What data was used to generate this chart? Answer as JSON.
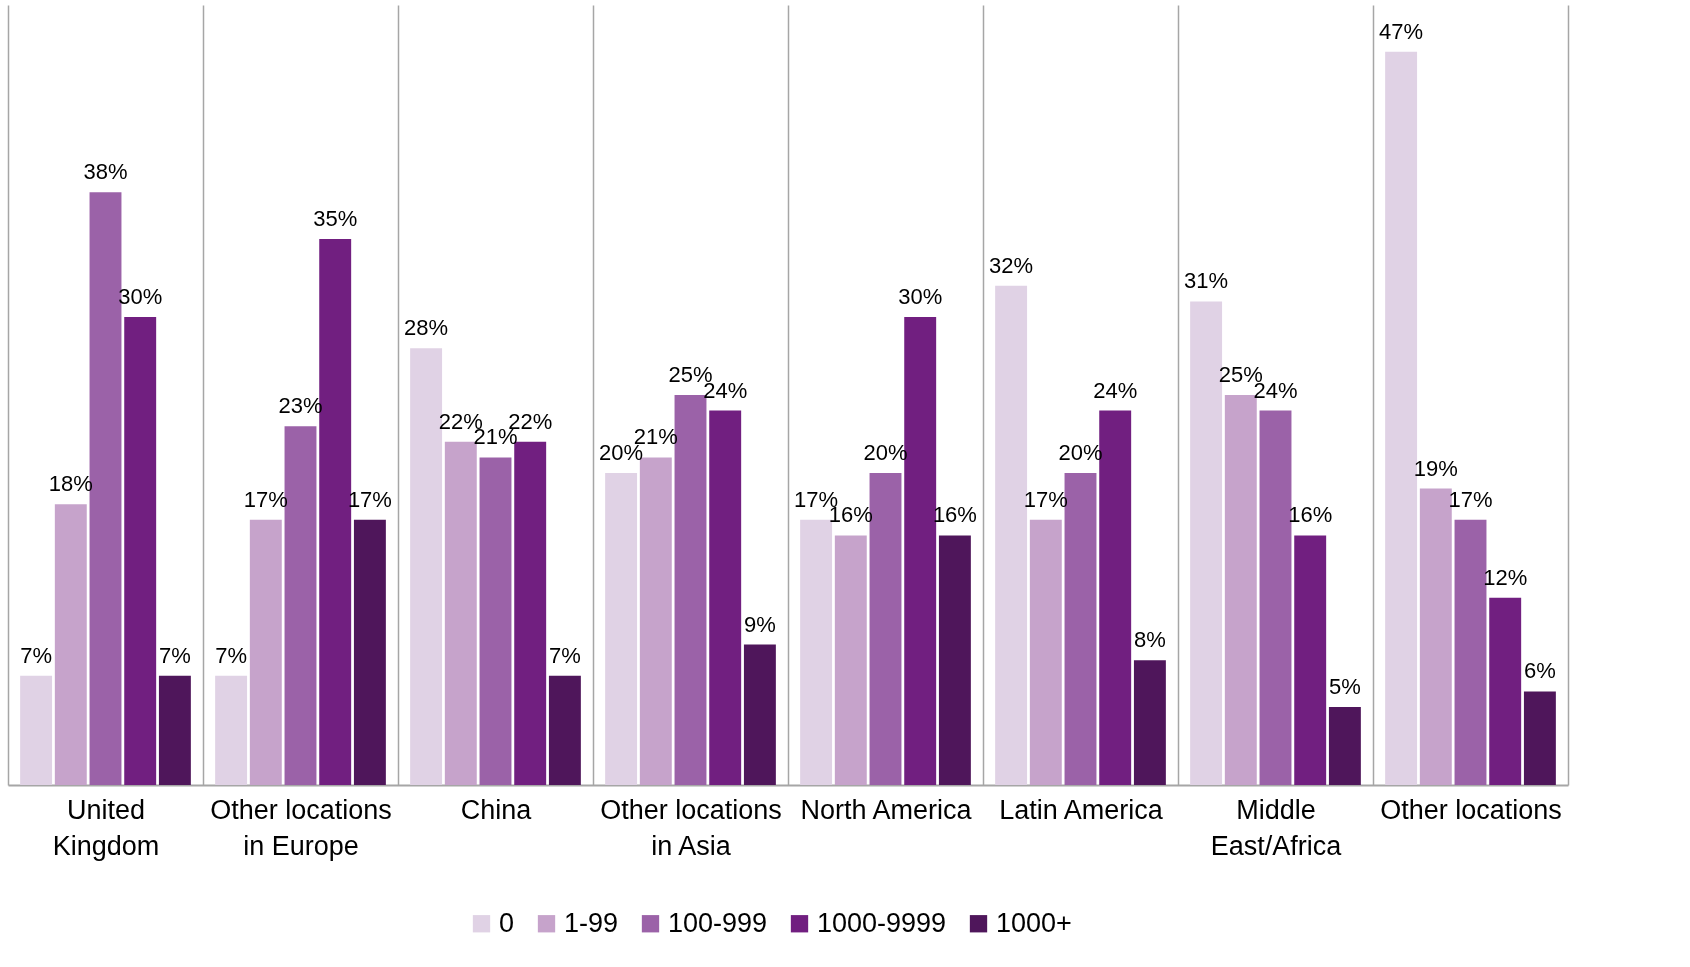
{
  "chart_data": {
    "type": "bar",
    "categories": [
      "United Kingdom",
      "Other locations in Europe",
      "China",
      "Other locations in Asia",
      "North America",
      "Latin America",
      "Middle East/Africa",
      "Other locations"
    ],
    "series": [
      {
        "name": "0",
        "color": "#e0d2e5",
        "values": [
          7,
          7,
          28,
          20,
          17,
          32,
          31,
          47
        ],
        "value_labels": [
          "7%",
          "7%",
          "28%",
          "20%",
          "17%",
          "32%",
          "31%",
          "47%"
        ]
      },
      {
        "name": "1-99",
        "color": "#c6a3cb",
        "values": [
          18,
          17,
          22,
          21,
          16,
          17,
          25,
          19
        ],
        "value_labels": [
          "18%",
          "17%",
          "22%",
          "21%",
          "16%",
          "17%",
          "25%",
          "19%"
        ]
      },
      {
        "name": "100-999",
        "color": "#9b62a8",
        "values": [
          38,
          23,
          21,
          25,
          20,
          20,
          24,
          17
        ],
        "value_labels": [
          "38%",
          "23%",
          "21%",
          "25%",
          "20%",
          "20%",
          "24%",
          "17%"
        ]
      },
      {
        "name": "1000-9999",
        "color": "#711f80",
        "values": [
          30,
          35,
          22,
          24,
          30,
          24,
          16,
          12
        ],
        "value_labels": [
          "30%",
          "35%",
          "22%",
          "24%",
          "30%",
          "24%",
          "16%",
          "12%"
        ]
      },
      {
        "name": "1000+",
        "color": "#4f165b",
        "values": [
          7,
          17,
          7,
          9,
          16,
          8,
          5,
          6
        ],
        "value_labels": [
          "7%",
          "17%",
          "7%",
          "9%",
          "16%",
          "8%",
          "5%",
          "6%"
        ]
      }
    ],
    "grid": "x",
    "legend": "bottom"
  }
}
